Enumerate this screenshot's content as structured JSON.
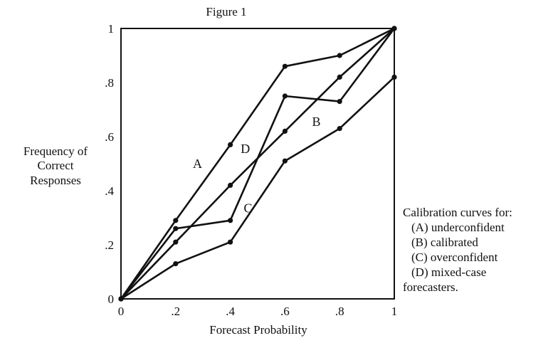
{
  "chart_data": {
    "type": "line",
    "title": "Figure 1",
    "xlabel": "Forecast Probability",
    "ylabel_lines": [
      "Frequency of",
      "Correct",
      "Responses"
    ],
    "xlim": [
      0,
      1
    ],
    "ylim": [
      0,
      1
    ],
    "x_ticks": [
      {
        "value": 0,
        "label": "0"
      },
      {
        "value": 0.2,
        "label": ".2"
      },
      {
        "value": 0.4,
        "label": ".4"
      },
      {
        "value": 0.6,
        "label": ".6"
      },
      {
        "value": 0.8,
        "label": ".8"
      },
      {
        "value": 1,
        "label": "1"
      }
    ],
    "y_ticks": [
      {
        "value": 0,
        "label": "0"
      },
      {
        "value": 0.2,
        "label": ".2"
      },
      {
        "value": 0.4,
        "label": ".4"
      },
      {
        "value": 0.6,
        "label": ".6"
      },
      {
        "value": 0.8,
        "label": ".8"
      },
      {
        "value": 1,
        "label": "1"
      }
    ],
    "grid": false,
    "series": [
      {
        "name": "A",
        "x": [
          0,
          0.2,
          0.4,
          0.6,
          0.8,
          1
        ],
        "y": [
          0,
          0.29,
          0.57,
          0.86,
          0.9,
          1.0
        ]
      },
      {
        "name": "B",
        "x": [
          0,
          0.2,
          0.4,
          0.6,
          0.8,
          1
        ],
        "y": [
          0,
          0.21,
          0.42,
          0.62,
          0.82,
          1.0
        ]
      },
      {
        "name": "C",
        "x": [
          0,
          0.2,
          0.4,
          0.6,
          0.8,
          1
        ],
        "y": [
          0,
          0.13,
          0.21,
          0.51,
          0.63,
          0.82
        ]
      },
      {
        "name": "D",
        "x": [
          0,
          0.2,
          0.4,
          0.6,
          0.8,
          1
        ],
        "y": [
          0,
          0.26,
          0.29,
          0.75,
          0.73,
          1.0
        ]
      }
    ],
    "curve_labels": [
      {
        "text": "A",
        "x": 0.28,
        "y": 0.5
      },
      {
        "text": "B",
        "x": 0.715,
        "y": 0.655
      },
      {
        "text": "C",
        "x": 0.465,
        "y": 0.335
      },
      {
        "text": "D",
        "x": 0.455,
        "y": 0.555
      }
    ],
    "legend": {
      "title": "Calibration curves for:",
      "items": [
        "(A)  underconfident",
        "(B)  calibrated",
        "(C)  overconfident",
        "(D)  mixed-case"
      ],
      "footer": "forecasters."
    }
  }
}
